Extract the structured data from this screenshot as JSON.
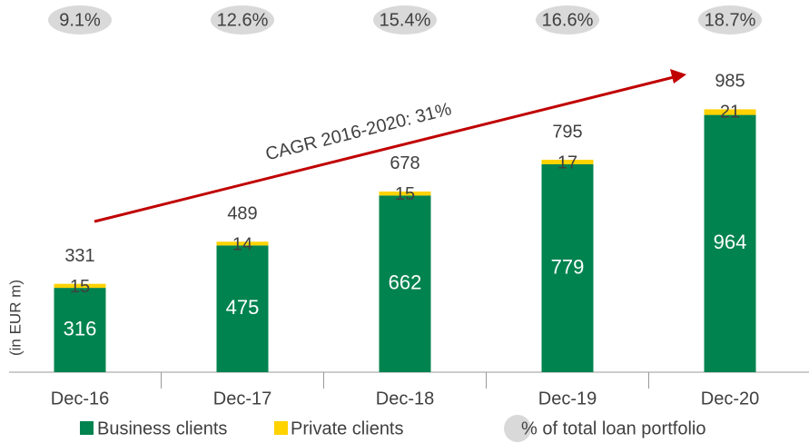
{
  "chart_data": {
    "type": "stacked_bar",
    "annotation": "CAGR 2016-2020: 31%",
    "y_label": "(in EUR m)",
    "categories": [
      "Dec-16",
      "Dec-17",
      "Dec-18",
      "Dec-19",
      "Dec-20"
    ],
    "series": [
      {
        "name": "Business clients",
        "color": "#00834f",
        "values": [
          316,
          475,
          662,
          779,
          964
        ]
      },
      {
        "name": "Private clients",
        "color": "#ffd200",
        "values": [
          15,
          14,
          15,
          17,
          21
        ]
      }
    ],
    "totals": [
      331,
      489,
      678,
      795,
      985
    ],
    "share": {
      "name": "% of total loan portfolio",
      "color": "#d9d9d9",
      "values": [
        9.1,
        12.6,
        15.4,
        16.6,
        18.7
      ],
      "value_labels": [
        "9.1%",
        "12.6%",
        "15.4%",
        "16.6%",
        "18.7%"
      ]
    },
    "ylim": [
      0,
      1000
    ]
  }
}
